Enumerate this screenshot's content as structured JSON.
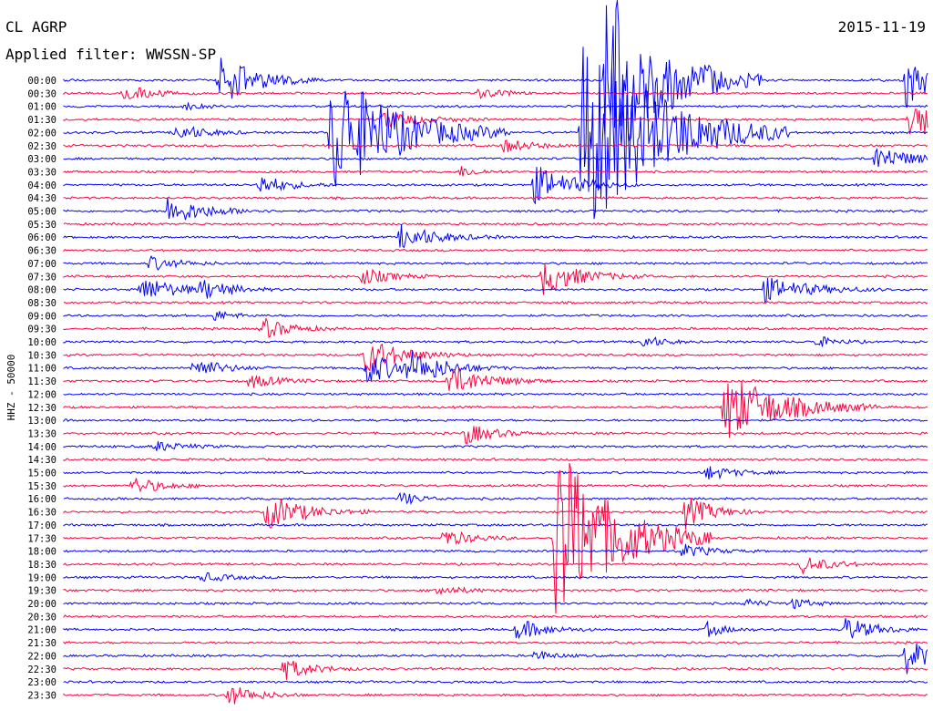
{
  "header": {
    "station": "CL AGRP",
    "filter_label": "Applied filter: WWSSN-SP",
    "date": "2015-11-19"
  },
  "chart_data": {
    "type": "line",
    "title": "CL AGRP",
    "ylabel": "HHZ - 50000",
    "row_labels": [
      "00:00",
      "00:30",
      "01:00",
      "01:30",
      "02:00",
      "02:30",
      "03:00",
      "03:30",
      "04:00",
      "04:30",
      "05:00",
      "05:30",
      "06:00",
      "06:30",
      "07:00",
      "07:30",
      "08:00",
      "08:30",
      "09:00",
      "09:30",
      "10:00",
      "10:30",
      "11:00",
      "11:30",
      "12:00",
      "12:30",
      "13:00",
      "13:30",
      "14:00",
      "14:30",
      "15:00",
      "15:30",
      "16:00",
      "16:30",
      "17:00",
      "17:30",
      "18:00",
      "18:30",
      "19:00",
      "19:30",
      "20:00",
      "20:30",
      "21:00",
      "21:30",
      "22:00",
      "22:30",
      "23:00",
      "23:30"
    ],
    "colors": [
      "#0000ff",
      "#ff0040"
    ],
    "events": [
      {
        "row": 0,
        "x": 0.18,
        "amp": 28,
        "dur": 0.04
      },
      {
        "row": 0,
        "x": 0.628,
        "amp": 110,
        "dur": 0.06
      },
      {
        "row": 0,
        "x": 0.975,
        "amp": 30,
        "dur": 0.03
      },
      {
        "row": 1,
        "x": 0.07,
        "amp": 10,
        "dur": 0.03
      },
      {
        "row": 1,
        "x": 0.48,
        "amp": 6,
        "dur": 0.03
      },
      {
        "row": 2,
        "x": 0.14,
        "amp": 4,
        "dur": 0.02
      },
      {
        "row": 3,
        "x": 0.37,
        "amp": 10,
        "dur": 0.04
      },
      {
        "row": 3,
        "x": 0.98,
        "amp": 28,
        "dur": 0.03
      },
      {
        "row": 4,
        "x": 0.31,
        "amp": 75,
        "dur": 0.07
      },
      {
        "row": 4,
        "x": 0.6,
        "amp": 120,
        "dur": 0.08
      },
      {
        "row": 4,
        "x": 0.13,
        "amp": 10,
        "dur": 0.03
      },
      {
        "row": 5,
        "x": 0.51,
        "amp": 8,
        "dur": 0.03
      },
      {
        "row": 6,
        "x": 0.94,
        "amp": 14,
        "dur": 0.04
      },
      {
        "row": 7,
        "x": 0.46,
        "amp": 6,
        "dur": 0.02
      },
      {
        "row": 8,
        "x": 0.225,
        "amp": 12,
        "dur": 0.03
      },
      {
        "row": 8,
        "x": 0.545,
        "amp": 22,
        "dur": 0.04
      },
      {
        "row": 10,
        "x": 0.12,
        "amp": 16,
        "dur": 0.04
      },
      {
        "row": 12,
        "x": 0.39,
        "amp": 14,
        "dur": 0.04
      },
      {
        "row": 14,
        "x": 0.1,
        "amp": 8,
        "dur": 0.03
      },
      {
        "row": 15,
        "x": 0.345,
        "amp": 10,
        "dur": 0.03
      },
      {
        "row": 15,
        "x": 0.555,
        "amp": 20,
        "dur": 0.04
      },
      {
        "row": 16,
        "x": 0.09,
        "amp": 14,
        "dur": 0.04
      },
      {
        "row": 16,
        "x": 0.16,
        "amp": 10,
        "dur": 0.03
      },
      {
        "row": 16,
        "x": 0.81,
        "amp": 14,
        "dur": 0.05
      },
      {
        "row": 18,
        "x": 0.175,
        "amp": 6,
        "dur": 0.02
      },
      {
        "row": 19,
        "x": 0.23,
        "amp": 12,
        "dur": 0.03
      },
      {
        "row": 20,
        "x": 0.67,
        "amp": 8,
        "dur": 0.02
      },
      {
        "row": 20,
        "x": 0.87,
        "amp": 7,
        "dur": 0.02
      },
      {
        "row": 21,
        "x": 0.35,
        "amp": 20,
        "dur": 0.04
      },
      {
        "row": 22,
        "x": 0.15,
        "amp": 12,
        "dur": 0.03
      },
      {
        "row": 22,
        "x": 0.35,
        "amp": 18,
        "dur": 0.04
      },
      {
        "row": 22,
        "x": 0.4,
        "amp": 16,
        "dur": 0.04
      },
      {
        "row": 23,
        "x": 0.215,
        "amp": 8,
        "dur": 0.03
      },
      {
        "row": 23,
        "x": 0.445,
        "amp": 18,
        "dur": 0.04
      },
      {
        "row": 25,
        "x": 0.765,
        "amp": 40,
        "dur": 0.06
      },
      {
        "row": 27,
        "x": 0.465,
        "amp": 12,
        "dur": 0.03
      },
      {
        "row": 28,
        "x": 0.105,
        "amp": 6,
        "dur": 0.03
      },
      {
        "row": 30,
        "x": 0.745,
        "amp": 8,
        "dur": 0.03
      },
      {
        "row": 31,
        "x": 0.08,
        "amp": 10,
        "dur": 0.03
      },
      {
        "row": 32,
        "x": 0.39,
        "amp": 8,
        "dur": 0.02
      },
      {
        "row": 33,
        "x": 0.235,
        "amp": 20,
        "dur": 0.04
      },
      {
        "row": 33,
        "x": 0.72,
        "amp": 18,
        "dur": 0.03
      },
      {
        "row": 35,
        "x": 0.44,
        "amp": 10,
        "dur": 0.03
      },
      {
        "row": 35,
        "x": 0.57,
        "amp": 110,
        "dur": 0.06
      },
      {
        "row": 36,
        "x": 0.715,
        "amp": 8,
        "dur": 0.03
      },
      {
        "row": 37,
        "x": 0.855,
        "amp": 10,
        "dur": 0.03
      },
      {
        "row": 38,
        "x": 0.16,
        "amp": 5,
        "dur": 0.03
      },
      {
        "row": 39,
        "x": 0.43,
        "amp": 6,
        "dur": 0.03
      },
      {
        "row": 40,
        "x": 0.79,
        "amp": 5,
        "dur": 0.02
      },
      {
        "row": 40,
        "x": 0.845,
        "amp": 6,
        "dur": 0.02
      },
      {
        "row": 42,
        "x": 0.525,
        "amp": 12,
        "dur": 0.03
      },
      {
        "row": 42,
        "x": 0.745,
        "amp": 8,
        "dur": 0.02
      },
      {
        "row": 42,
        "x": 0.905,
        "amp": 14,
        "dur": 0.03
      },
      {
        "row": 44,
        "x": 0.545,
        "amp": 6,
        "dur": 0.02
      },
      {
        "row": 44,
        "x": 0.975,
        "amp": 20,
        "dur": 0.03
      },
      {
        "row": 45,
        "x": 0.255,
        "amp": 12,
        "dur": 0.03
      },
      {
        "row": 47,
        "x": 0.19,
        "amp": 12,
        "dur": 0.03
      }
    ]
  }
}
